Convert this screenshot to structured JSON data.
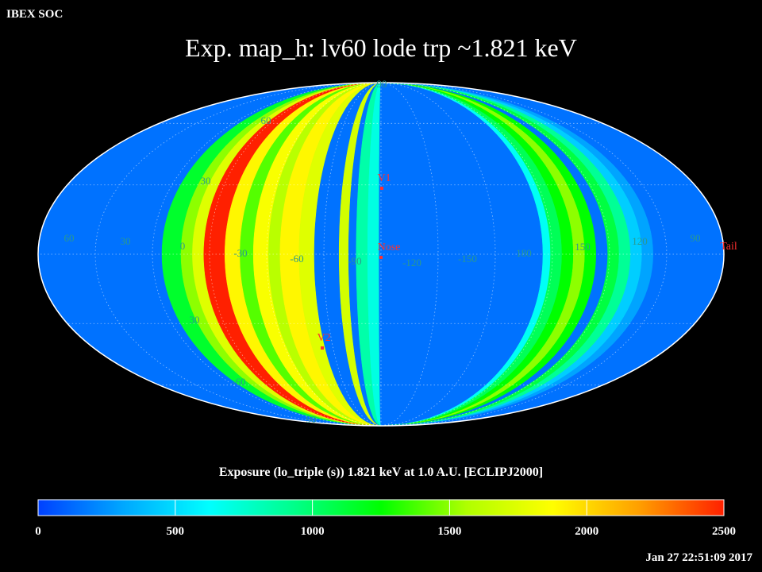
{
  "header": {
    "org_label": "IBEX SOC",
    "title": "Exp.   map_h: lv60 lode trp ~1.821 keV"
  },
  "colorbar": {
    "caption": "Exposure (lo_triple (s))  1.821 keV at 1.0 A.U. [ECLIPJ2000]",
    "ticks": [
      "0",
      "500",
      "1000",
      "1500",
      "2000",
      "2500"
    ],
    "min": 0,
    "max": 2500,
    "stops": [
      "#0040ff",
      "#00a8ff",
      "#00ffff",
      "#00ff88",
      "#00ff00",
      "#b0ff00",
      "#ffff00",
      "#ffa000",
      "#ff2000"
    ]
  },
  "footer": {
    "timestamp": "Jan 27 22:51:09 2017"
  },
  "chart_data": {
    "type": "heatmap",
    "projection": "Mollweide (ecliptic longitude/latitude)",
    "value_label": "Exposure (lo_triple (s))",
    "longitude_labels": [
      "60",
      "30",
      "0",
      "-30",
      "-60",
      "-90",
      "-120",
      "-150",
      "180",
      "150",
      "120",
      "90"
    ],
    "latitude_labels": [
      "60",
      "30",
      "30",
      "-60",
      "90",
      "90"
    ],
    "markers": [
      {
        "name": "V1",
        "lon": -105,
        "lat": 35
      },
      {
        "name": "Nose",
        "lon": -105,
        "lat": -5
      },
      {
        "name": "V2",
        "lon": -71,
        "lat": -35
      },
      {
        "name": "Tail",
        "lon": 75,
        "lat": 5
      }
    ],
    "grid": true,
    "bands_note": "exposure is uniform along each longitude strip; values below are per strip",
    "bands": [
      {
        "lon_from": 75,
        "lon_to": 10,
        "value": 150
      },
      {
        "lon_from": 10,
        "lon_to": 0,
        "value": 1150
      },
      {
        "lon_from": 0,
        "lon_to": -6,
        "value": 1500
      },
      {
        "lon_from": -6,
        "lon_to": -12,
        "value": 1750
      },
      {
        "lon_from": -12,
        "lon_to": -23,
        "value": 2500
      },
      {
        "lon_from": -23,
        "lon_to": -31,
        "value": 1900
      },
      {
        "lon_from": -31,
        "lon_to": -38,
        "value": 1400
      },
      {
        "lon_from": -38,
        "lon_to": -46,
        "value": 1850
      },
      {
        "lon_from": -46,
        "lon_to": -52,
        "value": 1600
      },
      {
        "lon_from": -52,
        "lon_to": -62,
        "value": 1900
      },
      {
        "lon_from": -62,
        "lon_to": -70,
        "value": 1750
      },
      {
        "lon_from": -70,
        "lon_to": -83,
        "value": 150
      },
      {
        "lon_from": -83,
        "lon_to": -88,
        "value": 1700
      },
      {
        "lon_from": -88,
        "lon_to": -92,
        "value": 150
      },
      {
        "lon_from": -92,
        "lon_to": -98,
        "value": 850
      },
      {
        "lon_from": -98,
        "lon_to": -104,
        "value": 700
      },
      {
        "lon_from": -104,
        "lon_to": 170,
        "value": 150
      },
      {
        "lon_from": 170,
        "lon_to": 166,
        "value": 650
      },
      {
        "lon_from": 166,
        "lon_to": 160,
        "value": 1050
      },
      {
        "lon_from": 160,
        "lon_to": 154,
        "value": 1250
      },
      {
        "lon_from": 154,
        "lon_to": 148,
        "value": 1500
      },
      {
        "lon_from": 148,
        "lon_to": 142,
        "value": 1250
      },
      {
        "lon_from": 142,
        "lon_to": 136,
        "value": 150
      },
      {
        "lon_from": 136,
        "lon_to": 130,
        "value": 1100
      },
      {
        "lon_from": 130,
        "lon_to": 124,
        "value": 900
      },
      {
        "lon_from": 124,
        "lon_to": 118,
        "value": 450
      },
      {
        "lon_from": 118,
        "lon_to": 112,
        "value": 300
      },
      {
        "lon_from": 112,
        "lon_to": 75,
        "value": 150
      }
    ]
  }
}
